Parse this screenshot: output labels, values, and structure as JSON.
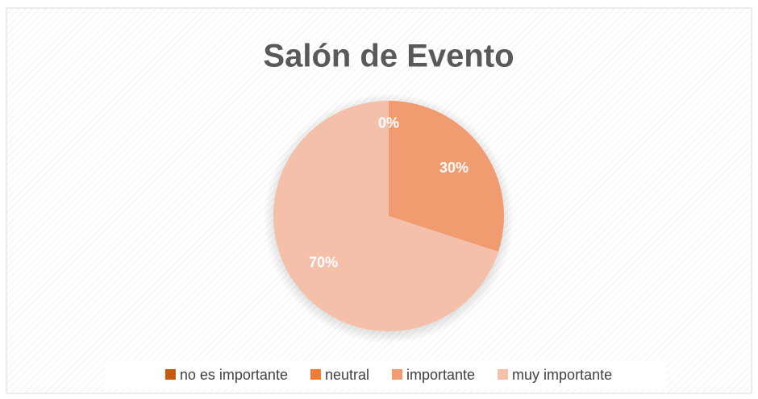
{
  "chart_data": {
    "type": "pie",
    "title": "Salón de Evento",
    "categories": [
      "no es importante",
      "neutral",
      "importante",
      "muy importante"
    ],
    "values": [
      0,
      0,
      30,
      70
    ],
    "value_labels": [
      "0%",
      "0%",
      "30%",
      "70%"
    ],
    "colors": [
      "#c55a11",
      "#ed7d31",
      "#f19c70",
      "#f5c0aa"
    ],
    "legend": "bottom"
  }
}
